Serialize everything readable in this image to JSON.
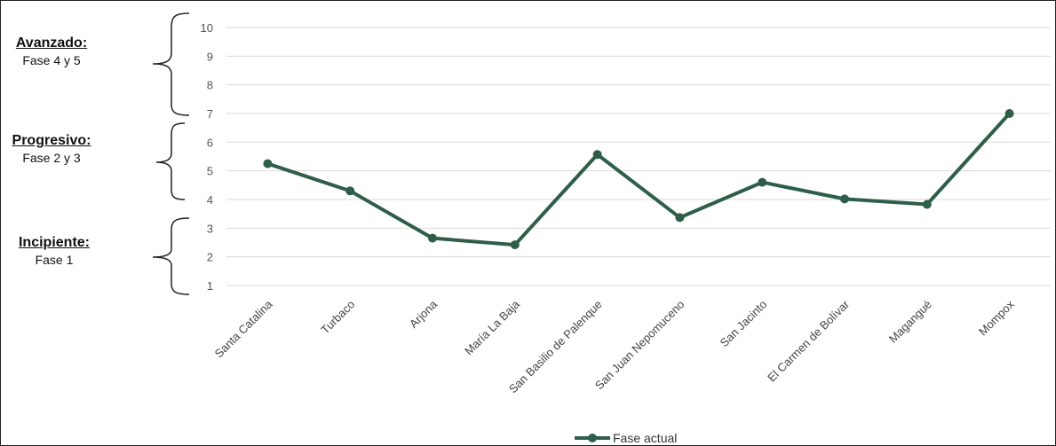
{
  "stages": [
    {
      "title": "Avanzado:",
      "subtitle": "Fase 4 y 5"
    },
    {
      "title": "Progresivo:",
      "subtitle": "Fase 2 y 3"
    },
    {
      "title": "Incipiente:",
      "subtitle": "Fase 1"
    }
  ],
  "colors": {
    "series": "#2e5e48",
    "grid": "#d9d9d9",
    "brace": "#222222"
  },
  "chart_data": {
    "type": "line",
    "categories": [
      "Santa Catalina",
      "Turbaco",
      "Arjona",
      "María La Baja",
      "San Basilio de Palenque",
      "San Juan Nepomuceno",
      "San Jacinto",
      "El Carmen de Bolívar",
      "Magangué",
      "Mompox"
    ],
    "series": [
      {
        "name": "Fase actual",
        "values": [
          5.25,
          4.3,
          2.65,
          2.42,
          5.57,
          3.37,
          4.6,
          4.02,
          3.83,
          7.0
        ]
      }
    ],
    "yticks": [
      1,
      2,
      3,
      4,
      5,
      6,
      7,
      8,
      9,
      10
    ],
    "ylim": [
      1,
      10
    ],
    "grid": true,
    "legend": "bottom"
  }
}
